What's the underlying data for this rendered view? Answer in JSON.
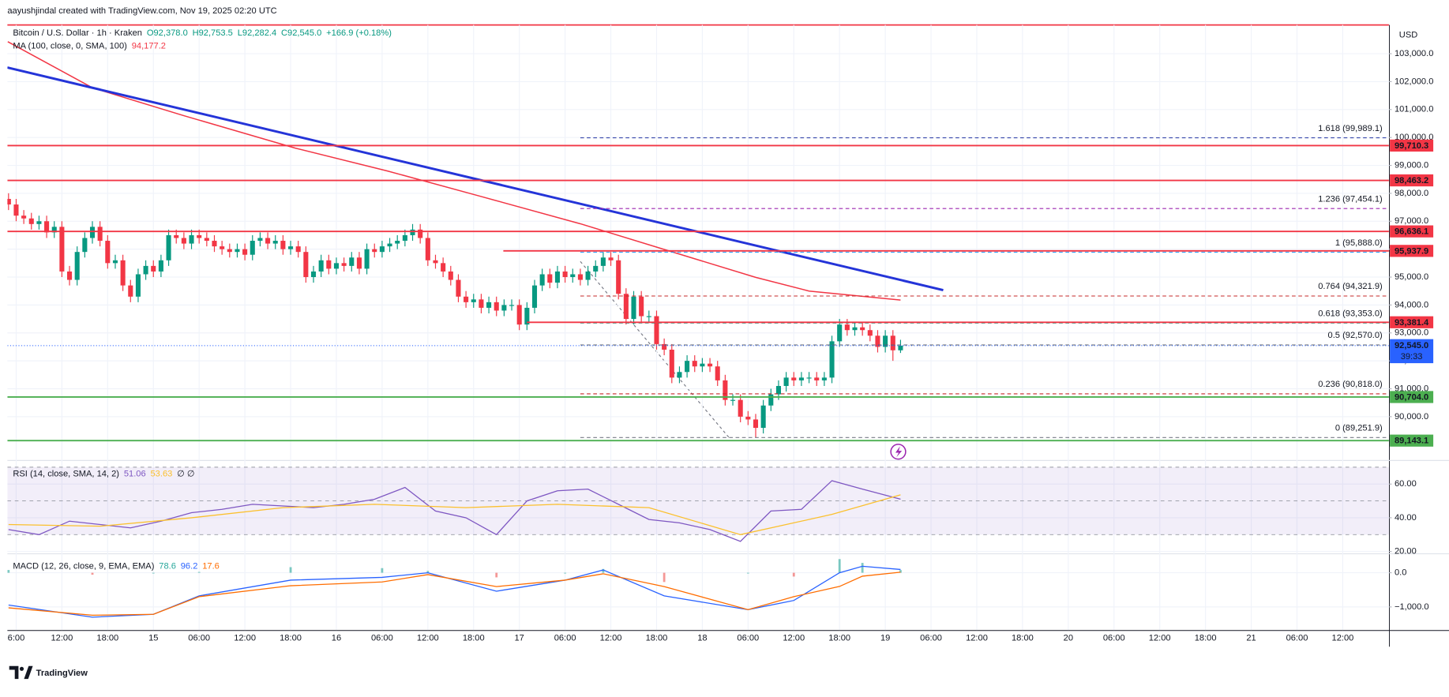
{
  "header": {
    "credit": "aayushjindal created with TradingView.com, Nov 19, 2025 02:20 UTC",
    "branding": "TradingView"
  },
  "chart_data": [
    {
      "type": "candlestick",
      "title": "Bitcoin / U.S. Dollar · 1h · Kraken",
      "ohlc": [
        "O92,378.0",
        "H92,753.5",
        "L92,282.4",
        "C92,545.0",
        "+166.9 (+0.18%)"
      ],
      "currency": "USD",
      "up_color": "#089981",
      "down_color": "#f23645",
      "xlim": [
        4.85,
        186.06
      ],
      "ylim": [
        88480,
        104030
      ],
      "grid": true,
      "yticks": [
        {
          "value": 90000,
          "label": "90,000.0"
        },
        {
          "value": 91000,
          "label": "91,000.0"
        },
        {
          "value": 92000,
          "label": "92,000.0"
        },
        {
          "value": 93000,
          "label": "93,000.0"
        },
        {
          "value": 94000,
          "label": "94,000.0"
        },
        {
          "value": 95000,
          "label": "95,000.0"
        },
        {
          "value": 96000,
          "label": "96,000.0"
        },
        {
          "value": 97000,
          "label": "97,000.0"
        },
        {
          "value": 98000,
          "label": "98,000.0"
        },
        {
          "value": 99000,
          "label": "99,000.0"
        },
        {
          "value": 100000,
          "label": "100,000.0"
        },
        {
          "value": 101000,
          "label": "101,000.0"
        },
        {
          "value": 102000,
          "label": "102,000.0"
        },
        {
          "value": 103000,
          "label": "103,000.0"
        }
      ],
      "x": [
        5,
        6,
        7,
        8,
        9,
        10,
        11,
        12,
        13,
        14,
        15,
        16,
        17,
        18,
        19,
        20,
        21,
        22,
        23,
        24,
        25,
        26,
        27,
        28,
        29,
        30,
        31,
        32,
        33,
        34,
        35,
        36,
        37,
        38,
        39,
        40,
        41,
        42,
        43,
        44,
        45,
        46,
        47,
        48,
        49,
        50,
        51,
        52,
        53,
        54,
        55,
        56,
        57,
        58,
        59,
        60,
        61,
        62,
        63,
        64,
        65,
        66,
        67,
        68,
        69,
        70,
        71,
        72,
        73,
        74,
        75,
        76,
        77,
        78,
        79,
        80,
        81,
        82,
        83,
        84,
        85,
        86,
        87,
        88,
        89,
        90,
        91,
        92,
        93,
        94,
        95,
        96,
        97,
        98,
        99,
        100,
        101,
        102,
        103,
        104,
        105,
        106,
        107,
        108,
        109,
        110,
        111,
        112,
        113,
        114,
        115,
        116,
        117,
        118,
        119,
        120,
        121,
        122
      ],
      "open": [
        97800,
        97600,
        97200,
        97100,
        96900,
        97000,
        96600,
        96800,
        95200,
        94900,
        95900,
        96400,
        96800,
        96300,
        95500,
        95600,
        94700,
        94300,
        95100,
        95400,
        95200,
        95600,
        96500,
        96400,
        96200,
        96500,
        96400,
        96300,
        96100,
        96000,
        95900,
        96000,
        95800,
        96300,
        96400,
        96200,
        96300,
        96000,
        96100,
        95900,
        95000,
        95200,
        95600,
        95300,
        95500,
        95400,
        95700,
        95300,
        96000,
        95900,
        96100,
        96200,
        96300,
        96500,
        96700,
        96400,
        95600,
        95500,
        95200,
        94900,
        94300,
        94100,
        94200,
        93900,
        94100,
        93800,
        94000,
        94000,
        93300,
        93900,
        94700,
        95100,
        94800,
        95200,
        95000,
        95100,
        94900,
        95200,
        95400,
        95700,
        95600,
        94400,
        93500,
        94300,
        93600,
        93600,
        92600,
        92400,
        91400,
        91600,
        92000,
        91800,
        91900,
        91800,
        91300,
        90600,
        90600,
        90000,
        89900,
        89600,
        90400,
        90800,
        91100,
        91400,
        91300,
        91400,
        91400,
        91300,
        91400,
        92700,
        93300,
        93100,
        93200,
        93100,
        92900,
        92500,
        92900,
        92378
      ],
      "high": [
        98000,
        97800,
        97400,
        97300,
        97200,
        97200,
        97000,
        97000,
        95400,
        96100,
        96600,
        97000,
        97000,
        96500,
        95800,
        95800,
        94900,
        95300,
        95600,
        95600,
        95800,
        96700,
        96700,
        96600,
        96700,
        96700,
        96600,
        96500,
        96300,
        96200,
        96200,
        96200,
        96500,
        96600,
        96600,
        96500,
        96500,
        96300,
        96300,
        96100,
        95400,
        95800,
        95800,
        95700,
        95700,
        95900,
        95900,
        96200,
        96200,
        96300,
        96400,
        96500,
        96700,
        96900,
        96900,
        96600,
        95800,
        95700,
        95400,
        95100,
        94500,
        94400,
        94400,
        94300,
        94300,
        94200,
        94200,
        94200,
        94100,
        94900,
        95300,
        95300,
        95400,
        95400,
        95300,
        95300,
        95400,
        95600,
        95900,
        95900,
        95800,
        94600,
        94500,
        94500,
        93800,
        93800,
        92800,
        92600,
        91800,
        92200,
        92200,
        92100,
        92100,
        92000,
        91500,
        90800,
        90800,
        90200,
        90100,
        90600,
        91000,
        91300,
        91600,
        91600,
        91600,
        91600,
        91600,
        91600,
        92900,
        93500,
        93500,
        93400,
        93400,
        93300,
        93100,
        93100,
        93100,
        92753.5
      ],
      "low": [
        97400,
        97000,
        96900,
        96700,
        96700,
        96400,
        96400,
        95000,
        94700,
        94700,
        95700,
        96200,
        96100,
        95300,
        95300,
        94500,
        94100,
        94100,
        94900,
        95000,
        95000,
        95400,
        96200,
        96000,
        96000,
        96200,
        96100,
        95900,
        95800,
        95700,
        95700,
        95600,
        95600,
        96100,
        96000,
        96000,
        95800,
        95800,
        95700,
        94800,
        94800,
        95000,
        95100,
        95100,
        95200,
        95200,
        95100,
        95100,
        95700,
        95700,
        95900,
        96000,
        96100,
        96300,
        96200,
        95400,
        95300,
        95000,
        94700,
        94100,
        93900,
        93900,
        93700,
        93700,
        93600,
        93600,
        93800,
        93100,
        93100,
        93700,
        94500,
        94600,
        94600,
        94800,
        94800,
        94700,
        94700,
        95000,
        95200,
        95400,
        94200,
        93300,
        93300,
        93400,
        93400,
        92400,
        92200,
        91200,
        91200,
        91400,
        91600,
        91600,
        91600,
        91100,
        90400,
        90400,
        89800,
        89700,
        89251.9,
        89400,
        90200,
        90600,
        90900,
        91100,
        91100,
        91200,
        91100,
        91100,
        91200,
        92500,
        92900,
        92900,
        92900,
        92700,
        92300,
        92300,
        92000,
        92282.4
      ],
      "close": [
        97600,
        97200,
        97100,
        96900,
        97000,
        96600,
        96800,
        95200,
        94900,
        95900,
        96400,
        96800,
        96300,
        95500,
        95600,
        94700,
        94300,
        95100,
        95400,
        95200,
        95600,
        96500,
        96400,
        96200,
        96500,
        96400,
        96300,
        96100,
        96000,
        95900,
        96000,
        95800,
        96300,
        96400,
        96200,
        96300,
        96000,
        96100,
        95900,
        95000,
        95200,
        95600,
        95300,
        95500,
        95400,
        95700,
        95300,
        96000,
        95900,
        96100,
        96200,
        96300,
        96500,
        96700,
        96400,
        95600,
        95500,
        95200,
        94900,
        94300,
        94100,
        94200,
        93900,
        94100,
        93800,
        94000,
        94000,
        93300,
        93900,
        94700,
        95100,
        94800,
        95200,
        95000,
        95100,
        94900,
        95200,
        95400,
        95700,
        95600,
        94400,
        93500,
        94300,
        93600,
        93600,
        92600,
        92400,
        91400,
        91600,
        92000,
        91800,
        91900,
        91800,
        91300,
        90600,
        90600,
        90000,
        89900,
        89600,
        90400,
        90800,
        91100,
        91400,
        91300,
        91400,
        91400,
        91300,
        91400,
        92700,
        93300,
        93100,
        93200,
        93100,
        92900,
        92500,
        92900,
        92378,
        92545.0
      ],
      "series": [
        {
          "name": "MA (100, close, 0, SMA, 100)",
          "value_label": "94,177.2",
          "color": "#f23645",
          "x": [
            4.9,
            16,
            28,
            42.6,
            54.7,
            66.8,
            80,
            91,
            103,
            110,
            122
          ],
          "values": [
            103430,
            101780,
            100780,
            99620,
            98800,
            97900,
            96910,
            95990,
            94990,
            94500,
            94177.2
          ]
        }
      ],
      "trendline": {
        "color": "#2434d8",
        "x": [
          4.85,
          127.6
        ],
        "values": [
          102504,
          94532
        ]
      },
      "levels": [
        {
          "value": 99710.3,
          "label": "99,710.3",
          "color": "#f23645"
        },
        {
          "value": 98463.2,
          "label": "98,463.2",
          "color": "#f23645"
        },
        {
          "value": 96636.1,
          "label": "96,636.1",
          "color": "#f23645"
        },
        {
          "value": 95937.9,
          "label": "95,937.9",
          "color": "#f23645",
          "x_from": 69.9
        },
        {
          "value": 93381.4,
          "label": "93,381.4",
          "color": "#f23645",
          "x_from": 73.0
        },
        {
          "value": 90704.0,
          "label": "90,704.0",
          "color": "#4caf50"
        },
        {
          "value": 89143.1,
          "label": "89,143.1",
          "color": "#4caf50"
        }
      ],
      "fibonacci": {
        "x_from": 80,
        "levels": [
          {
            "value": 99989.1,
            "label": "1.618 (99,989.1)",
            "color": "#3949ab"
          },
          {
            "value": 97454.1,
            "label": "1.236 (97,454.1)",
            "color": "#9c27b0"
          },
          {
            "value": 95888.0,
            "label": "1 (95,888.0)",
            "color": "#2196f3"
          },
          {
            "value": 94321.9,
            "label": "0.764 (94,321.9)",
            "color": "#c62828"
          },
          {
            "value": 93353.0,
            "label": "0.618 (93,353.0)",
            "color": "#089981"
          },
          {
            "value": 92570.0,
            "label": "0.5 (92,570.0)",
            "color": "#5d606b"
          },
          {
            "value": 90818.0,
            "label": "0.236 (90,818.0)",
            "color": "#c62828"
          },
          {
            "value": 89251.9,
            "label": "0 (89,251.9)",
            "color": "#787b86"
          }
        ]
      },
      "last_price": {
        "value": 92545.0,
        "label": "92,545.0",
        "countdown": "39:33",
        "color": "#2962ff"
      }
    },
    {
      "type": "line",
      "title": "RSI (14, close, SMA, 14, 2)",
      "divergence_labels": "∅ ∅",
      "xlim": [
        4.85,
        186.06
      ],
      "ylim": [
        19.45,
        73.15
      ],
      "yticks": [
        {
          "value": 60,
          "label": "60.00"
        },
        {
          "value": 40,
          "label": "40.00"
        },
        {
          "value": 20,
          "label": "20.00"
        }
      ],
      "grid": true,
      "band": [
        30,
        70
      ],
      "band_color": "#7e57c2",
      "levels": [
        70,
        50,
        30
      ],
      "series": [
        {
          "value_label": "51.06",
          "color": "#7e57c2",
          "x": [
            5,
            9,
            13,
            17,
            21,
            25,
            29,
            33,
            37,
            41,
            45,
            49,
            53,
            57,
            61,
            65,
            69,
            73,
            77,
            81,
            85,
            89,
            93,
            97,
            101,
            105,
            109,
            113,
            117,
            122
          ],
          "values": [
            33,
            30,
            38,
            36,
            34,
            38,
            43,
            45,
            48,
            47,
            46,
            48,
            51,
            58,
            44,
            40,
            30,
            50,
            56,
            57,
            48,
            39,
            37,
            33,
            26,
            44,
            45,
            62,
            57,
            51.06
          ]
        },
        {
          "value_label": "53.63",
          "color": "#fbc02d",
          "x": [
            5,
            17,
            29,
            41,
            53,
            65,
            77,
            89,
            101,
            113,
            122
          ],
          "values": [
            36,
            35,
            40,
            46,
            48,
            46,
            48,
            46,
            30,
            42,
            53.63
          ]
        }
      ]
    },
    {
      "type": "macd",
      "title": "MACD (12, 26, close, 9, EMA, EMA)",
      "xlim": [
        4.85,
        186.06
      ],
      "ylim": [
        -1676,
        541
      ],
      "yticks": [
        {
          "value": 0,
          "label": "0.0"
        },
        {
          "value": -1000,
          "label": "−1,000.0"
        }
      ],
      "grid": true,
      "x": [
        5,
        16,
        24,
        30,
        42,
        54,
        60,
        69,
        78,
        83,
        91,
        102,
        108,
        114,
        117,
        122
      ],
      "histogram": {
        "value_label": "78.6",
        "up_color": "#26a69a",
        "down_color": "#ef5350",
        "values": [
          81,
          -57,
          0,
          24,
          164,
          135,
          54,
          -135,
          0,
          111,
          -271,
          0,
          -111,
          400,
          289,
          78.6
        ]
      },
      "series": [
        {
          "value_label": "96.2",
          "color": "#2962ff",
          "values": [
            -946,
            -1300,
            -1216,
            -676,
            -216,
            -135,
            0,
            -540,
            -216,
            81,
            -676,
            -1081,
            -811,
            0,
            189,
            96.2
          ]
        },
        {
          "value_label": "17.6",
          "color": "#ff6d00",
          "values": [
            -1027,
            -1243,
            -1216,
            -700,
            -380,
            -270,
            -54,
            -405,
            -216,
            -30,
            -405,
            -1081,
            -700,
            -400,
            -100,
            17.6
          ]
        }
      ],
      "xticks": [
        {
          "value": 6,
          "label": "6:00"
        },
        {
          "value": 12,
          "label": "12:00"
        },
        {
          "value": 18,
          "label": "18:00"
        },
        {
          "value": 24,
          "label": "15"
        },
        {
          "value": 30,
          "label": "06:00"
        },
        {
          "value": 36,
          "label": "12:00"
        },
        {
          "value": 42,
          "label": "18:00"
        },
        {
          "value": 48,
          "label": "16"
        },
        {
          "value": 54,
          "label": "06:00"
        },
        {
          "value": 60,
          "label": "12:00"
        },
        {
          "value": 66,
          "label": "18:00"
        },
        {
          "value": 72,
          "label": "17"
        },
        {
          "value": 78,
          "label": "06:00"
        },
        {
          "value": 84,
          "label": "12:00"
        },
        {
          "value": 90,
          "label": "18:00"
        },
        {
          "value": 96,
          "label": "18"
        },
        {
          "value": 102,
          "label": "06:00"
        },
        {
          "value": 108,
          "label": "12:00"
        },
        {
          "value": 114,
          "label": "18:00"
        },
        {
          "value": 120,
          "label": "19"
        },
        {
          "value": 126,
          "label": "06:00"
        },
        {
          "value": 132,
          "label": "12:00"
        },
        {
          "value": 138,
          "label": "18:00"
        },
        {
          "value": 144,
          "label": "20"
        },
        {
          "value": 150,
          "label": "06:00"
        },
        {
          "value": 156,
          "label": "12:00"
        },
        {
          "value": 162,
          "label": "18:00"
        },
        {
          "value": 168,
          "label": "21"
        },
        {
          "value": 174,
          "label": "06:00"
        },
        {
          "value": 180,
          "label": "12:00"
        }
      ]
    }
  ]
}
